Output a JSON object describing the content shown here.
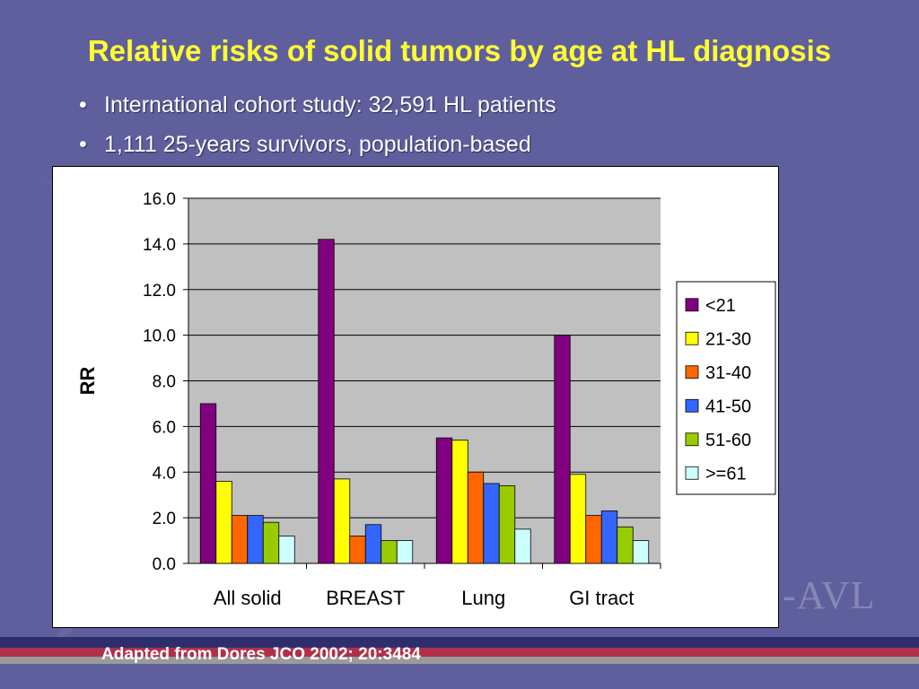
{
  "slide": {
    "title": "Relative risks of solid tumors by age at HL diagnosis",
    "bullets": [
      "International cohort study: 32,591 HL patients",
      "1,111  25-years survivors, population-based"
    ],
    "source": "Adapted from Dores JCO 2002; 20:3484",
    "watermark": "-AVL",
    "bullet_glyph": "•"
  },
  "colors": {
    "background": "#5f5f9e",
    "title": "#ffff33",
    "plot_area": "#c0c0c0",
    "stripe_navy": "#2e2e6e",
    "stripe_red": "#b0304a",
    "stripe_gray": "#9a9a9a"
  },
  "chart_data": {
    "type": "bar",
    "title": "",
    "xlabel": "",
    "ylabel": "RR",
    "ylim": [
      0,
      16
    ],
    "yticks": [
      "0.0",
      "2.0",
      "4.0",
      "6.0",
      "8.0",
      "10.0",
      "12.0",
      "14.0",
      "16.0"
    ],
    "grid": true,
    "legend_position": "right",
    "categories": [
      "All solid",
      "BREAST",
      "Lung",
      "GI tract"
    ],
    "series": [
      {
        "name": "<21",
        "color": "#800080",
        "values": [
          7.0,
          14.2,
          5.5,
          10.0
        ]
      },
      {
        "name": "21-30",
        "color": "#ffff00",
        "values": [
          3.6,
          3.7,
          5.4,
          3.9
        ]
      },
      {
        "name": "31-40",
        "color": "#ff6600",
        "values": [
          2.1,
          1.2,
          4.0,
          2.1
        ]
      },
      {
        "name": "41-50",
        "color": "#3366ff",
        "values": [
          2.1,
          1.7,
          3.5,
          2.3
        ]
      },
      {
        "name": "51-60",
        "color": "#99cc00",
        "values": [
          1.8,
          1.0,
          3.4,
          1.6
        ]
      },
      {
        "name": ">=61",
        "color": "#ccffff",
        "values": [
          1.2,
          1.0,
          1.5,
          1.0
        ]
      }
    ]
  }
}
